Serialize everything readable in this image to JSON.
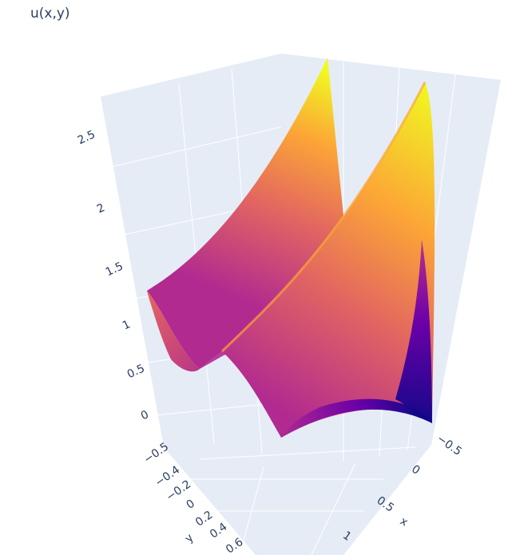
{
  "chart_data": {
    "type": "surface",
    "title": "u(x,y)",
    "xlabel": "x",
    "ylabel": "y",
    "zlabel": "",
    "x_ticks": [
      "−0.5",
      "0",
      "0.5",
      "1"
    ],
    "y_ticks": [
      "−0.5",
      "−0.4",
      "−0.2",
      "0",
      "0.2",
      "0.4",
      "0.6"
    ],
    "z_ticks": [
      "0",
      "0.5",
      "1",
      "1.5",
      "2",
      "2.5"
    ],
    "xlim": [
      -0.6,
      1.2
    ],
    "ylim": [
      -0.55,
      0.7
    ],
    "zlim": [
      0,
      2.7
    ],
    "colorscale": [
      "#0d0887",
      "#6a00a8",
      "#b12a90",
      "#e16462",
      "#fca636",
      "#f0f921"
    ],
    "ridges": [
      {
        "x_edge": -0.05,
        "base_height": 1.28,
        "peak_height": 2.7
      },
      {
        "x_edge": 1.05,
        "base_height": 1.0,
        "peak_height": 2.6
      }
    ],
    "grid": true,
    "background": "#e5ecf6"
  }
}
